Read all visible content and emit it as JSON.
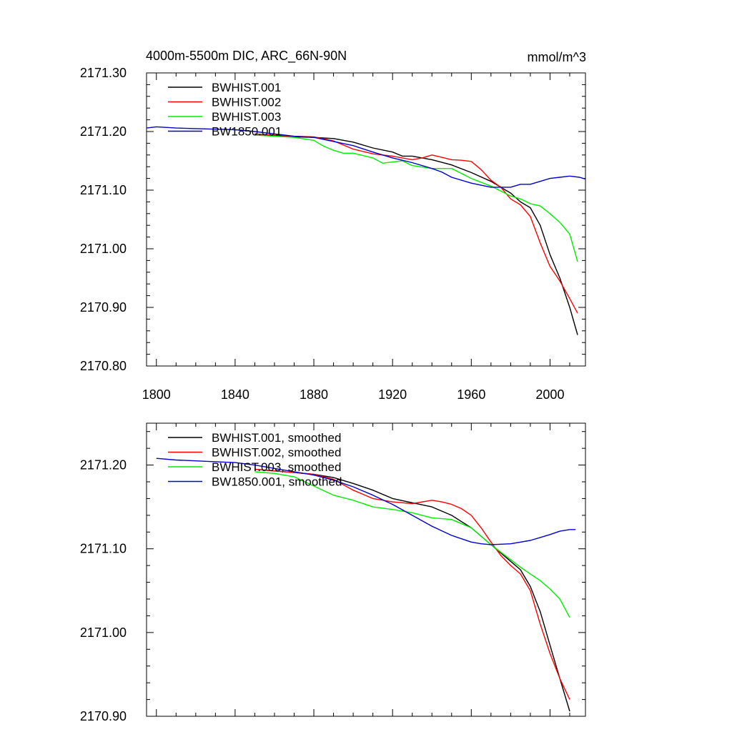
{
  "chart_data": [
    {
      "type": "line",
      "title": "4000m-5500m DIC, ARC_66N-90N",
      "units": "mmol/m^3",
      "xlim": [
        1795,
        2018
      ],
      "ylim": [
        2170.8,
        2171.3
      ],
      "xticks": [
        1800,
        1840,
        1880,
        1920,
        1960,
        2000
      ],
      "xtick_labels": [
        "1800",
        "1840",
        "1880",
        "1920",
        "1960",
        "2000"
      ],
      "yticks": [
        2170.8,
        2170.9,
        2171.0,
        2171.1,
        2171.2,
        2171.3
      ],
      "ytick_labels": [
        "2170.80",
        "2170.90",
        "2171.00",
        "2171.10",
        "2171.20",
        "2171.30"
      ],
      "legend_position": "top-left",
      "series": [
        {
          "name": "BWHIST.001",
          "color": "#000000",
          "x": [
            1850,
            1860,
            1870,
            1880,
            1890,
            1900,
            1910,
            1920,
            1925,
            1930,
            1940,
            1950,
            1960,
            1970,
            1980,
            1985,
            1990,
            1995,
            2000,
            2005,
            2010,
            2014
          ],
          "y": [
            2171.196,
            2171.193,
            2171.191,
            2171.19,
            2171.188,
            2171.182,
            2171.172,
            2171.165,
            2171.158,
            2171.158,
            2171.152,
            2171.143,
            2171.13,
            2171.115,
            2171.095,
            2171.08,
            2171.07,
            2171.04,
            2170.99,
            2170.95,
            2170.9,
            2170.853
          ]
        },
        {
          "name": "BWHIST.002",
          "color": "#ff0000",
          "x": [
            1850,
            1860,
            1870,
            1880,
            1890,
            1900,
            1910,
            1920,
            1930,
            1935,
            1940,
            1945,
            1950,
            1955,
            1960,
            1965,
            1970,
            1975,
            1980,
            1985,
            1990,
            1995,
            2000,
            2005,
            2010,
            2014
          ],
          "y": [
            2171.196,
            2171.194,
            2171.192,
            2171.191,
            2171.184,
            2171.17,
            2171.162,
            2171.158,
            2171.152,
            2171.155,
            2171.16,
            2171.156,
            2171.152,
            2171.151,
            2171.149,
            2171.135,
            2171.117,
            2171.105,
            2171.085,
            2171.075,
            2171.055,
            2171.01,
            2170.97,
            2170.945,
            2170.915,
            2170.89
          ]
        },
        {
          "name": "BWHIST.003",
          "color": "#00ee00",
          "x": [
            1850,
            1860,
            1870,
            1880,
            1885,
            1890,
            1895,
            1900,
            1910,
            1915,
            1920,
            1925,
            1930,
            1940,
            1950,
            1960,
            1970,
            1980,
            1985,
            1990,
            1995,
            2000,
            2005,
            2010,
            2014
          ],
          "y": [
            2171.194,
            2171.192,
            2171.19,
            2171.185,
            2171.175,
            2171.168,
            2171.163,
            2171.163,
            2171.155,
            2171.146,
            2171.148,
            2171.15,
            2171.142,
            2171.137,
            2171.137,
            2171.12,
            2171.107,
            2171.09,
            2171.085,
            2171.077,
            2171.073,
            2171.06,
            2171.045,
            2171.025,
            2170.978
          ]
        },
        {
          "name": "BW1850.001",
          "color": "#0000cc",
          "x": [
            1795,
            1800,
            1810,
            1820,
            1830,
            1840,
            1850,
            1860,
            1870,
            1880,
            1890,
            1900,
            1910,
            1920,
            1930,
            1940,
            1945,
            1950,
            1960,
            1970,
            1980,
            1985,
            1990,
            1995,
            2000,
            2005,
            2010,
            2015,
            2018
          ],
          "y": [
            2171.206,
            2171.208,
            2171.206,
            2171.205,
            2171.204,
            2171.203,
            2171.2,
            2171.196,
            2171.192,
            2171.19,
            2171.183,
            2171.176,
            2171.165,
            2171.155,
            2171.147,
            2171.137,
            2171.131,
            2171.122,
            2171.112,
            2171.105,
            2171.105,
            2171.11,
            2171.11,
            2171.115,
            2171.12,
            2171.122,
            2171.124,
            2171.122,
            2171.119
          ]
        }
      ]
    },
    {
      "type": "line",
      "title": "",
      "xlim": [
        1795,
        2018
      ],
      "ylim": [
        2170.9,
        2171.25
      ],
      "xticks": [
        1800,
        1840,
        1880,
        1920,
        1960,
        2000
      ],
      "yticks": [
        2170.9,
        2171.0,
        2171.1,
        2171.2
      ],
      "ytick_labels": [
        "2170.90",
        "2171.00",
        "2171.10",
        "2171.20"
      ],
      "legend_position": "top-left",
      "series": [
        {
          "name": "BWHIST.001, smoothed",
          "color": "#000000",
          "x": [
            1850,
            1860,
            1870,
            1880,
            1890,
            1900,
            1910,
            1920,
            1930,
            1940,
            1950,
            1960,
            1970,
            1980,
            1985,
            1990,
            1995,
            2000,
            2005,
            2010
          ],
          "y": [
            2171.195,
            2171.193,
            2171.191,
            2171.189,
            2171.185,
            2171.178,
            2171.17,
            2171.16,
            2171.155,
            2171.15,
            2171.14,
            2171.125,
            2171.105,
            2171.085,
            2171.075,
            2171.055,
            2171.025,
            2170.985,
            2170.945,
            2170.906
          ]
        },
        {
          "name": "BWHIST.002, smoothed",
          "color": "#ff0000",
          "x": [
            1850,
            1860,
            1870,
            1880,
            1890,
            1900,
            1910,
            1920,
            1930,
            1940,
            1945,
            1950,
            1955,
            1960,
            1965,
            1970,
            1975,
            1980,
            1985,
            1990,
            1995,
            2000,
            2005,
            2010
          ],
          "y": [
            2171.195,
            2171.193,
            2171.191,
            2171.189,
            2171.183,
            2171.17,
            2171.16,
            2171.156,
            2171.154,
            2171.158,
            2171.156,
            2171.153,
            2171.148,
            2171.14,
            2171.125,
            2171.108,
            2171.092,
            2171.08,
            2171.07,
            2171.05,
            2171.01,
            2170.975,
            2170.945,
            2170.92
          ]
        },
        {
          "name": "BWHIST.003, smoothed",
          "color": "#00ee00",
          "x": [
            1850,
            1860,
            1870,
            1880,
            1890,
            1900,
            1910,
            1920,
            1930,
            1940,
            1950,
            1960,
            1970,
            1980,
            1985,
            1990,
            1995,
            2000,
            2005,
            2010
          ],
          "y": [
            2171.192,
            2171.19,
            2171.186,
            2171.175,
            2171.164,
            2171.158,
            2171.15,
            2171.147,
            2171.143,
            2171.137,
            2171.135,
            2171.125,
            2171.105,
            2171.087,
            2171.078,
            2171.07,
            2171.062,
            2171.052,
            2171.04,
            2171.018
          ]
        },
        {
          "name": "BW1850.001, smoothed",
          "color": "#0000cc",
          "x": [
            1800,
            1810,
            1820,
            1830,
            1840,
            1850,
            1860,
            1870,
            1880,
            1890,
            1900,
            1910,
            1920,
            1930,
            1940,
            1950,
            1960,
            1965,
            1970,
            1980,
            1990,
            2000,
            2005,
            2010,
            2013
          ],
          "y": [
            2171.208,
            2171.206,
            2171.205,
            2171.204,
            2171.203,
            2171.2,
            2171.196,
            2171.192,
            2171.188,
            2171.182,
            2171.174,
            2171.164,
            2171.153,
            2171.14,
            2171.127,
            2171.116,
            2171.108,
            2171.106,
            2171.105,
            2171.106,
            2171.11,
            2171.117,
            2171.121,
            2171.123,
            2171.123
          ]
        }
      ]
    }
  ]
}
